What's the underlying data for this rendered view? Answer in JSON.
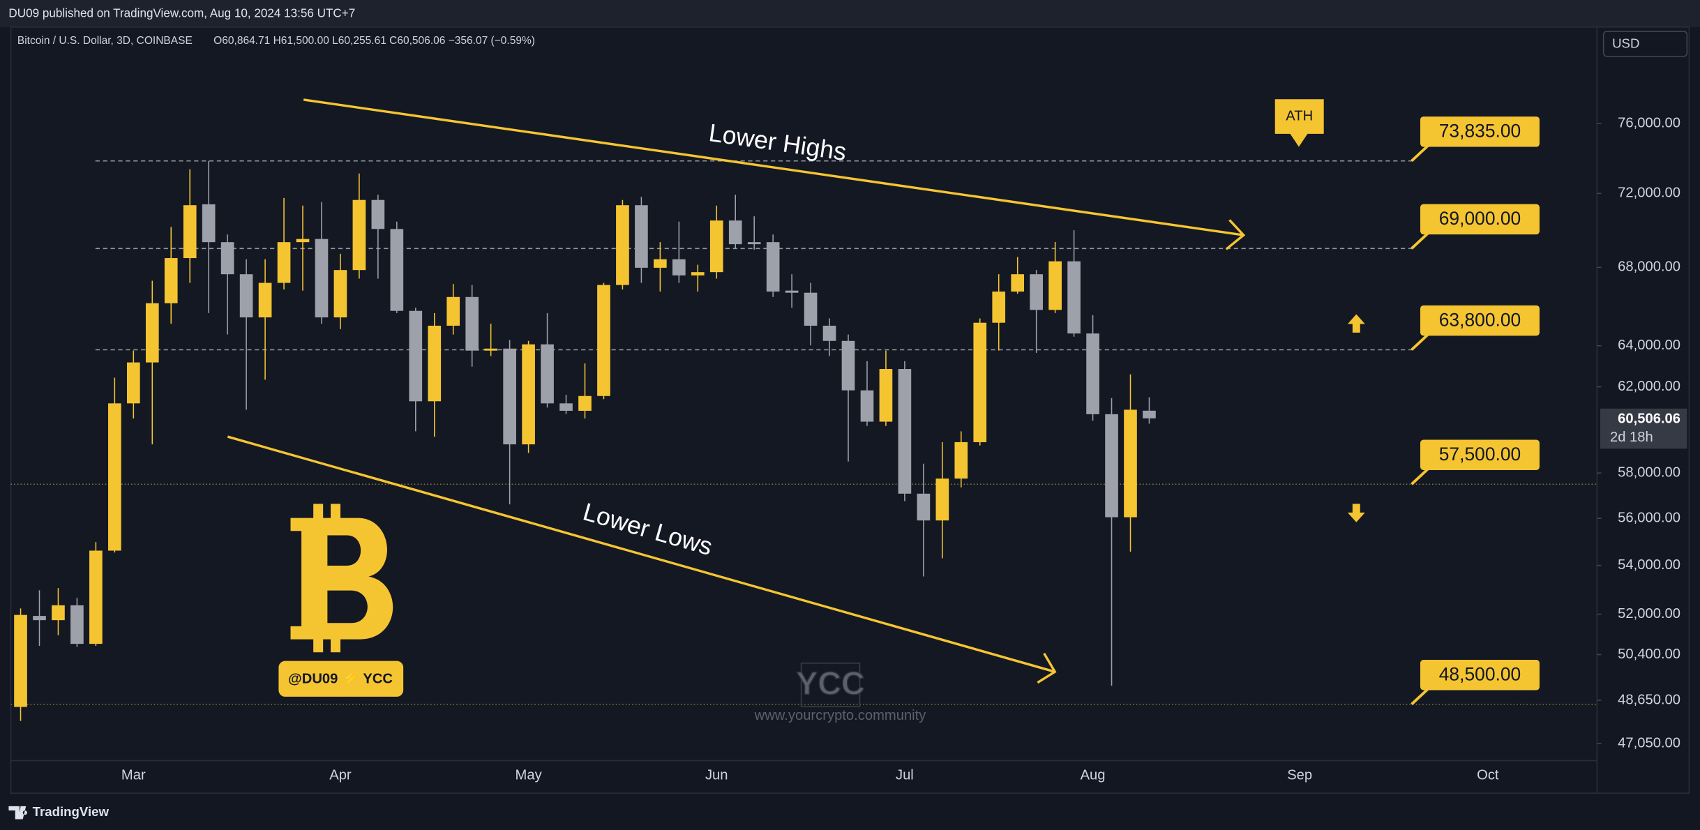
{
  "header": {
    "published": "DU09 published on TradingView.com, Aug 10, 2024 13:56 UTC+7",
    "symbol": "Bitcoin / U.S. Dollar, 3D, COINBASE",
    "ohlc": "O60,864.71 H61,500.00 L60,255.61 C60,506.06 −356.07 (−0.59%)",
    "currency": "USD"
  },
  "footer": {
    "brand": "TradingView"
  },
  "watermark": {
    "badge": "@DU09 ⚡ YCC",
    "logo": "YCC",
    "url": "www.yourcrypto.community"
  },
  "chart_data": {
    "type": "candlestick",
    "log_scale": true,
    "up_color": "#f5c531",
    "down_color": "#9ea1aa",
    "categories": [
      null,
      null,
      null,
      null,
      null,
      null,
      "Mar",
      null,
      null,
      null,
      null,
      null,
      null,
      null,
      null,
      null,
      null,
      "Apr",
      null,
      null,
      null,
      null,
      null,
      null,
      null,
      null,
      null,
      "May",
      null,
      null,
      null,
      null,
      null,
      null,
      null,
      null,
      null,
      "Jun",
      null,
      null,
      null,
      null,
      null,
      null,
      null,
      null,
      null,
      "Jul",
      null,
      null,
      null,
      null,
      null,
      null,
      null,
      null,
      null,
      "Aug",
      null,
      null,
      null,
      null,
      null,
      null,
      null,
      null,
      null,
      null,
      "Sep",
      null,
      null,
      null,
      null,
      null,
      null,
      null,
      null,
      null,
      "Oct",
      null,
      null,
      null,
      null,
      null
    ],
    "open": [
      48400,
      51930,
      51760,
      52360,
      50820,
      54620,
      61210,
      63180,
      66140,
      68490,
      71400,
      69340,
      67640,
      65420,
      67190,
      69340,
      69510,
      65420,
      67860,
      71640,
      70050,
      65750,
      61310,
      65000,
      66460,
      63760,
      63860,
      59300,
      64070,
      61210,
      60860,
      61560,
      67080,
      71350,
      67980,
      68430,
      67580,
      67750,
      70510,
      69340,
      69340,
      66790,
      66680,
      65000,
      64240,
      61830,
      60350,
      62860,
      57080,
      55910,
      57750,
      59400,
      65150,
      66740,
      67640,
      65800,
      68320,
      64610,
      60700,
      56050,
      60864.71,
      null,
      null,
      null,
      null,
      null,
      null,
      null,
      null,
      null,
      null,
      null,
      null,
      null,
      null,
      null,
      null,
      null,
      null,
      null,
      null,
      null,
      null,
      null
    ],
    "high": [
      52230,
      52970,
      53060,
      52660,
      54980,
      62440,
      63760,
      67300,
      70160,
      73360,
      73835,
      69750,
      68430,
      68430,
      71750,
      71330,
      71530,
      68720,
      73120,
      71930,
      70450,
      65910,
      65640,
      67130,
      67080,
      65100,
      64290,
      64240,
      65640,
      61620,
      63130,
      67190,
      71640,
      71810,
      69340,
      70450,
      68140,
      71330,
      71930,
      70740,
      69750,
      67640,
      67190,
      65370,
      64560,
      63240,
      63760,
      63240,
      58420,
      59400,
      59900,
      65370,
      67640,
      68550,
      67860,
      69350,
      69980,
      65530,
      61460,
      62600,
      61500,
      null,
      null,
      null,
      null,
      null,
      null,
      null,
      null,
      null,
      null,
      null,
      null,
      null,
      null,
      null,
      null,
      null,
      null,
      null,
      null,
      null,
      null,
      null
    ],
    "low": [
      47880,
      50740,
      51160,
      50700,
      50740,
      54540,
      60500,
      59300,
      65100,
      67190,
      65640,
      64560,
      60910,
      62340,
      66850,
      66790,
      65100,
      64830,
      67410,
      67410,
      65640,
      59900,
      59650,
      64560,
      62970,
      63490,
      56610,
      58910,
      61010,
      60710,
      60500,
      61410,
      66850,
      67190,
      66740,
      67190,
      66740,
      67410,
      69000,
      68940,
      66460,
      65910,
      64020,
      63490,
      58520,
      60150,
      60150,
      56750,
      53540,
      54300,
      57360,
      59250,
      63760,
      66630,
      63650,
      65640,
      64450,
      60400,
      49200,
      54580,
      60255.61,
      null,
      null,
      null,
      null,
      null,
      null,
      null,
      null,
      null,
      null,
      null,
      null,
      null,
      null,
      null,
      null,
      null,
      null,
      null,
      null,
      null,
      null,
      null
    ],
    "close": [
      51970,
      51760,
      52360,
      50820,
      54620,
      61210,
      63180,
      66140,
      68490,
      71350,
      69340,
      67640,
      65420,
      67190,
      69340,
      69510,
      65420,
      67860,
      71640,
      70050,
      65750,
      61310,
      65000,
      66460,
      63760,
      63860,
      59300,
      64070,
      61210,
      60860,
      61560,
      67080,
      71350,
      67980,
      68430,
      67580,
      67750,
      70510,
      69230,
      69230,
      66740,
      66680,
      65000,
      64240,
      61830,
      60350,
      62860,
      57080,
      55910,
      57750,
      59400,
      65150,
      66740,
      67640,
      65800,
      68320,
      64610,
      60700,
      56050,
      60910,
      60506.06,
      null,
      null,
      null,
      null,
      null,
      null,
      null,
      null,
      null,
      null,
      null,
      null,
      null,
      null,
      null,
      null,
      null,
      null,
      null,
      null,
      null,
      null,
      null
    ],
    "ylim": [
      46430,
      81890
    ],
    "yticks": [
      {
        "value": 76000,
        "label": "76,000.00"
      },
      {
        "value": 72000,
        "label": "72,000.00"
      },
      {
        "value": 68000,
        "label": "68,000.00"
      },
      {
        "value": 64000,
        "label": "64,000.00"
      },
      {
        "value": 62000,
        "label": "62,000.00"
      },
      {
        "value": 58000,
        "label": "58,000.00"
      },
      {
        "value": 56000,
        "label": "56,000.00"
      },
      {
        "value": 54000,
        "label": "54,000.00"
      },
      {
        "value": 52000,
        "label": "52,000.00"
      },
      {
        "value": 50400,
        "label": "50,400.00"
      },
      {
        "value": 48650,
        "label": "48,650.00"
      },
      {
        "value": 47050,
        "label": "47,050.00"
      }
    ],
    "last_price": {
      "value": 60506.06,
      "label": "60,506.06"
    },
    "countdown": "2d 18h",
    "levels": [
      {
        "value": 73835,
        "label": "73,835.00"
      },
      {
        "value": 69000,
        "label": "69,000.00"
      },
      {
        "value": 63800,
        "label": "63,800.00"
      },
      {
        "value": 57500,
        "label": "57,500.00"
      },
      {
        "value": 48500,
        "label": "48,500.00"
      }
    ],
    "annotations": {
      "ath": "ATH",
      "upper_trend": "Lower Highs",
      "lower_trend": "Lower Lows"
    }
  }
}
